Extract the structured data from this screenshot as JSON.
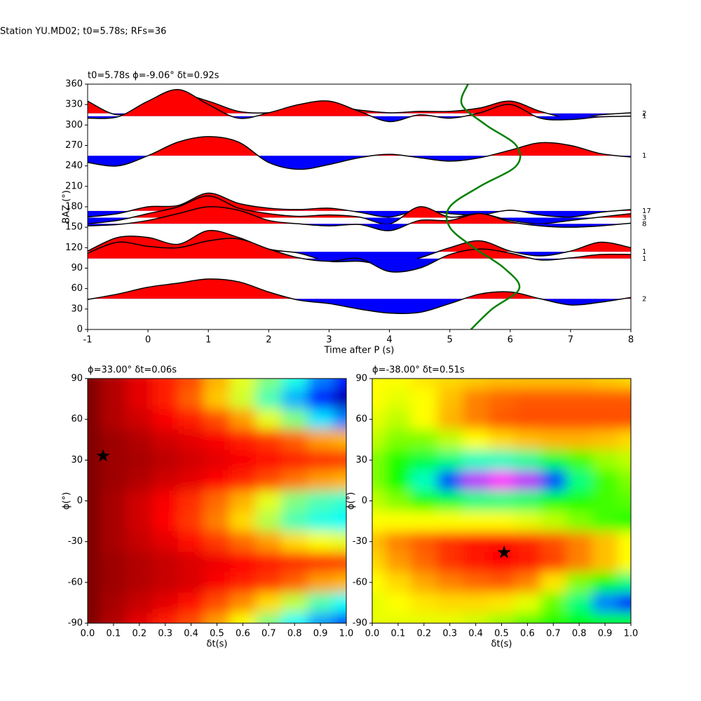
{
  "title": "Station YU.MD02; t0=5.78s; RFs=36",
  "chart_data": [
    {
      "type": "line",
      "title": "t0=5.78s ϕ=-9.06° δt=0.92s",
      "x_label": "Time after P (s)",
      "y_label": "BAZ (°)",
      "xlim": [
        -1,
        8
      ],
      "ylim": [
        0,
        360
      ],
      "xticks": [
        -1,
        0,
        1,
        2,
        3,
        4,
        5,
        6,
        7,
        8
      ],
      "yticks": [
        0,
        30,
        60,
        90,
        120,
        150,
        180,
        210,
        240,
        270,
        300,
        330,
        360
      ],
      "positive_color": "#ff0000",
      "negative_color": "#0000ff",
      "x": [
        -1,
        -0.5,
        0,
        0.5,
        1,
        1.5,
        2,
        2.5,
        3,
        3.5,
        4,
        4.5,
        5,
        5.5,
        6,
        6.5,
        7,
        7.5,
        8
      ],
      "traces": [
        {
          "label": "2",
          "baseline": 317,
          "values": [
            335,
            315,
            330,
            345,
            335,
            320,
            318,
            325,
            328,
            322,
            318,
            320,
            320,
            325,
            335,
            320,
            310,
            315,
            318
          ]
        },
        {
          "label": "1",
          "baseline": 313,
          "values": [
            310,
            312,
            335,
            352,
            330,
            310,
            318,
            330,
            335,
            320,
            305,
            315,
            310,
            318,
            330,
            310,
            308,
            312,
            313
          ]
        },
        {
          "label": "1",
          "baseline": 255,
          "values": [
            245,
            240,
            255,
            275,
            283,
            275,
            245,
            235,
            242,
            252,
            257,
            252,
            247,
            252,
            263,
            274,
            270,
            258,
            253
          ]
        },
        {
          "label": "17",
          "baseline": 174,
          "values": [
            165,
            170,
            180,
            182,
            200,
            185,
            178,
            176,
            178,
            172,
            165,
            175,
            170,
            168,
            175,
            168,
            165,
            172,
            176
          ]
        },
        {
          "label": "3",
          "baseline": 164,
          "values": [
            155,
            160,
            170,
            180,
            196,
            178,
            170,
            166,
            168,
            165,
            155,
            180,
            165,
            170,
            160,
            155,
            160,
            165,
            170
          ]
        },
        {
          "label": "8",
          "baseline": 155,
          "values": [
            152,
            154,
            160,
            170,
            180,
            175,
            160,
            155,
            152,
            154,
            145,
            160,
            160,
            170,
            158,
            152,
            150,
            152,
            156
          ]
        },
        {
          "label": "1",
          "baseline": 114,
          "values": [
            115,
            135,
            135,
            125,
            145,
            135,
            118,
            112,
            100,
            100,
            95,
            105,
            120,
            130,
            115,
            108,
            115,
            128,
            120
          ]
        },
        {
          "label": "1",
          "baseline": 104,
          "values": [
            112,
            128,
            122,
            120,
            130,
            133,
            118,
            105,
            100,
            104,
            85,
            90,
            110,
            118,
            112,
            102,
            105,
            110,
            110
          ]
        },
        {
          "label": "2",
          "baseline": 45,
          "values": [
            44,
            52,
            62,
            68,
            74,
            70,
            55,
            43,
            38,
            30,
            24,
            25,
            38,
            52,
            55,
            45,
            36,
            40,
            47
          ]
        }
      ],
      "curve": {
        "color": "#008000",
        "x": [
          5.35,
          5.7,
          6.15,
          5.9,
          5.4,
          5.0,
          5.0,
          5.5,
          6.1,
          6.1,
          5.6,
          5.2,
          5.3
        ],
        "values": [
          0,
          30,
          60,
          90,
          120,
          150,
          180,
          210,
          240,
          270,
          300,
          330,
          360
        ]
      }
    },
    {
      "type": "heatmap",
      "title": "ϕ=33.00° δt=0.06s",
      "x_label": "δt(s)",
      "y_label": "ϕ(°)",
      "colormap": "jet",
      "xlim": [
        0,
        1
      ],
      "ylim": [
        -90,
        90
      ],
      "xticks": [
        {
          "value": 0,
          "label": "0.0"
        },
        0.1,
        0.2,
        0.3,
        0.4,
        0.5,
        0.6,
        0.7,
        0.8,
        0.9,
        {
          "value": 1,
          "label": "1.0"
        }
      ],
      "yticks": [
        -90,
        -60,
        -30,
        0,
        30,
        60,
        90
      ],
      "x": [
        0,
        0.1,
        0.2,
        0.3,
        0.4,
        0.5,
        0.6,
        0.7,
        0.8,
        0.9,
        1
      ],
      "y": [
        90,
        75,
        60,
        45,
        30,
        15,
        0,
        -15,
        -30,
        -45,
        -60,
        -75,
        -90
      ],
      "z": [
        [
          1,
          0.95,
          0.9,
          0.85,
          0.8,
          0.7,
          0.6,
          0.5,
          0.4,
          0.25,
          0.15
        ],
        [
          1,
          0.95,
          0.9,
          0.85,
          0.78,
          0.68,
          0.58,
          0.45,
          0.3,
          0.15,
          0.05
        ],
        [
          1,
          0.95,
          0.92,
          0.88,
          0.85,
          0.8,
          0.72,
          0.6,
          0.5,
          0.35,
          0.25
        ],
        [
          1,
          0.97,
          0.95,
          0.92,
          0.9,
          0.88,
          0.85,
          0.82,
          0.78,
          0.72,
          0.7
        ],
        [
          1,
          0.97,
          0.96,
          0.94,
          0.92,
          0.9,
          0.88,
          0.86,
          0.84,
          0.83,
          0.82
        ],
        [
          1,
          0.97,
          0.95,
          0.92,
          0.9,
          0.87,
          0.84,
          0.8,
          0.76,
          0.72,
          0.7
        ],
        [
          1,
          0.96,
          0.92,
          0.88,
          0.83,
          0.77,
          0.7,
          0.6,
          0.5,
          0.45,
          0.42
        ],
        [
          1,
          0.96,
          0.92,
          0.87,
          0.82,
          0.75,
          0.66,
          0.55,
          0.45,
          0.4,
          0.38
        ],
        [
          1,
          0.96,
          0.93,
          0.9,
          0.86,
          0.82,
          0.77,
          0.72,
          0.66,
          0.62,
          0.6
        ],
        [
          1,
          0.97,
          0.95,
          0.93,
          0.91,
          0.89,
          0.87,
          0.85,
          0.83,
          0.82,
          0.81
        ],
        [
          1,
          0.97,
          0.95,
          0.93,
          0.91,
          0.88,
          0.85,
          0.82,
          0.78,
          0.72,
          0.7
        ],
        [
          1,
          0.96,
          0.93,
          0.9,
          0.86,
          0.8,
          0.74,
          0.66,
          0.56,
          0.45,
          0.38
        ],
        [
          1,
          0.95,
          0.9,
          0.85,
          0.8,
          0.72,
          0.62,
          0.5,
          0.38,
          0.28,
          0.2
        ]
      ],
      "marker": {
        "x": 0.06,
        "y": 33
      }
    },
    {
      "type": "heatmap",
      "title": "ϕ=-38.00° δt=0.51s",
      "x_label": "δt(s)",
      "y_label": "ϕ(°)",
      "colormap": "hsv",
      "xlim": [
        0,
        1
      ],
      "ylim": [
        -90,
        90
      ],
      "xticks": [
        {
          "value": 0,
          "label": "0.0"
        },
        0.1,
        0.2,
        0.3,
        0.4,
        0.5,
        0.6,
        0.7,
        0.8,
        0.9,
        {
          "value": 1,
          "label": "1.0"
        }
      ],
      "yticks": [
        -90,
        -60,
        -30,
        0,
        30,
        60,
        90
      ],
      "x": [
        0,
        0.1,
        0.2,
        0.3,
        0.4,
        0.5,
        0.6,
        0.7,
        0.8,
        0.9,
        1
      ],
      "y": [
        90,
        75,
        60,
        45,
        30,
        15,
        0,
        -15,
        -30,
        -45,
        -60,
        -75,
        -90
      ],
      "z": [
        [
          0.2,
          0.2,
          0.18,
          0.17,
          0.16,
          0.15,
          0.15,
          0.15,
          0.15,
          0.16,
          0.17
        ],
        [
          0.2,
          0.22,
          0.2,
          0.15,
          0.1,
          0.08,
          0.07,
          0.07,
          0.07,
          0.07,
          0.07
        ],
        [
          0.22,
          0.25,
          0.2,
          0.14,
          0.1,
          0.07,
          0.06,
          0.06,
          0.06,
          0.06,
          0.06
        ],
        [
          0.25,
          0.3,
          0.3,
          0.25,
          0.2,
          0.17,
          0.15,
          0.14,
          0.14,
          0.15,
          0.17
        ],
        [
          0.3,
          0.38,
          0.45,
          0.5,
          0.55,
          0.55,
          0.52,
          0.45,
          0.35,
          0.28,
          0.25
        ],
        [
          0.3,
          0.4,
          0.55,
          0.75,
          0.95,
          1,
          0.95,
          0.75,
          0.5,
          0.35,
          0.3
        ],
        [
          0.25,
          0.3,
          0.38,
          0.45,
          0.5,
          0.5,
          0.48,
          0.42,
          0.38,
          0.35,
          0.33
        ],
        [
          0.2,
          0.2,
          0.2,
          0.2,
          0.2,
          0.2,
          0.22,
          0.25,
          0.3,
          0.35,
          0.38
        ],
        [
          0.15,
          0.1,
          0.07,
          0.04,
          0.02,
          0.01,
          0.03,
          0.06,
          0.1,
          0.15,
          0.2
        ],
        [
          0.17,
          0.12,
          0.08,
          0.04,
          0.02,
          0,
          0.02,
          0.05,
          0.1,
          0.15,
          0.2
        ],
        [
          0.2,
          0.17,
          0.13,
          0.1,
          0.08,
          0.07,
          0.1,
          0.18,
          0.3,
          0.4,
          0.5
        ],
        [
          0.22,
          0.2,
          0.18,
          0.17,
          0.17,
          0.18,
          0.22,
          0.32,
          0.5,
          0.7,
          0.8
        ],
        [
          0.22,
          0.22,
          0.22,
          0.22,
          0.24,
          0.28,
          0.33,
          0.38,
          0.4,
          0.4,
          0.42
        ]
      ],
      "marker": {
        "x": 0.51,
        "y": -38
      }
    }
  ]
}
